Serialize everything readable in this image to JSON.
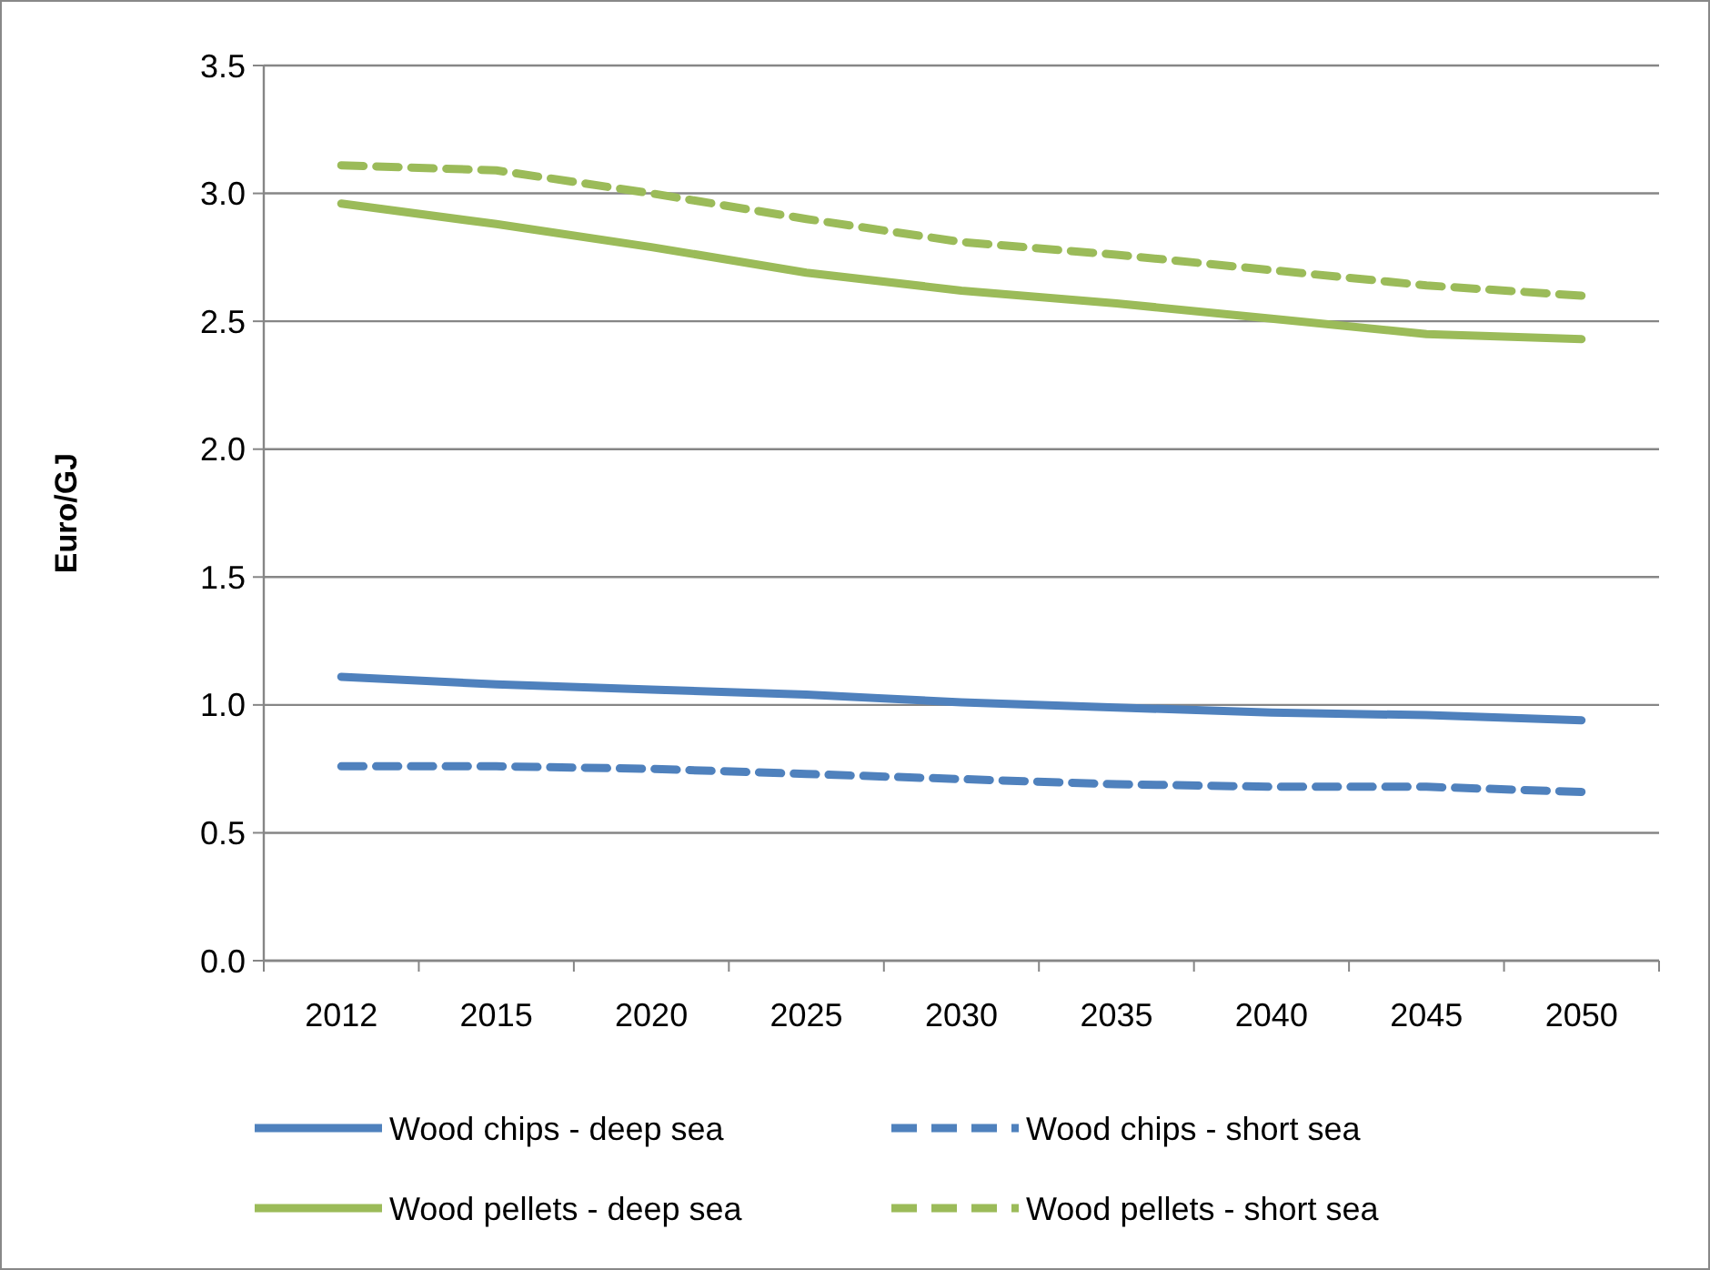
{
  "chart_data": {
    "type": "line",
    "ylabel": "Euro/GJ",
    "categories": [
      "2012",
      "2015",
      "2020",
      "2025",
      "2030",
      "2035",
      "2040",
      "2045",
      "2050"
    ],
    "ylim": [
      0,
      3.5
    ],
    "yticks": [
      {
        "value": 0,
        "label": "0.0"
      },
      {
        "value": 0.5,
        "label": "0.5"
      },
      {
        "value": 1,
        "label": "1.0"
      },
      {
        "value": 1.5,
        "label": "1.5"
      },
      {
        "value": 2,
        "label": "2.0"
      },
      {
        "value": 2.5,
        "label": "2.5"
      },
      {
        "value": 3,
        "label": "3.0"
      },
      {
        "value": 3.5,
        "label": "3.5"
      }
    ],
    "grid": "y",
    "legend": "bottom",
    "marker": "none",
    "series": [
      {
        "name": "Wood chips - deep sea",
        "color": "#4f81bd",
        "line_style": "solid",
        "values": [
          1.11,
          1.08,
          1.06,
          1.04,
          1.01,
          0.99,
          0.97,
          0.96,
          0.94
        ]
      },
      {
        "name": "Wood chips - short sea",
        "color": "#4f81bd",
        "line_style": "dashed",
        "values": [
          0.76,
          0.76,
          0.75,
          0.73,
          0.71,
          0.69,
          0.68,
          0.68,
          0.66
        ]
      },
      {
        "name": "Wood pellets - deep sea",
        "color": "#9bbb59",
        "line_style": "solid",
        "values": [
          2.96,
          2.88,
          2.79,
          2.69,
          2.62,
          2.57,
          2.51,
          2.45,
          2.43
        ]
      },
      {
        "name": "Wood pellets - short sea",
        "color": "#9bbb59",
        "line_style": "dashed",
        "values": [
          3.11,
          3.09,
          3.0,
          2.9,
          2.81,
          2.76,
          2.7,
          2.64,
          2.6
        ]
      }
    ]
  }
}
